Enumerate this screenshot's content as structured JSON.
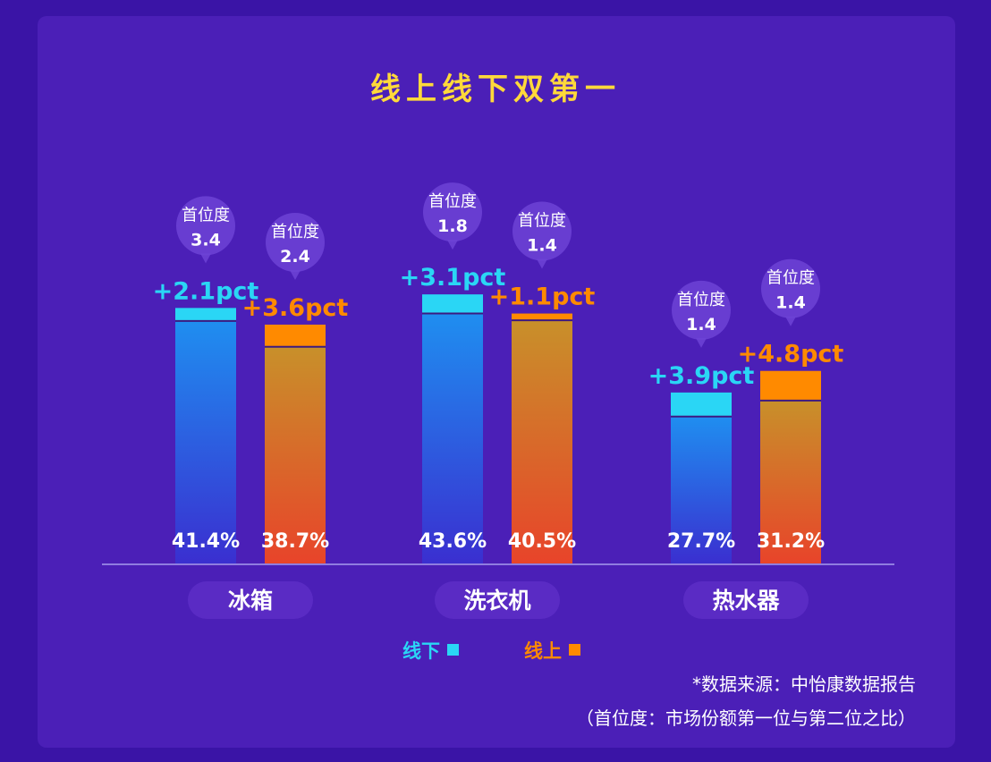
{
  "title": "线上线下双第一",
  "chart_data": {
    "type": "bar",
    "categories": [
      "冰箱",
      "洗衣机",
      "热水器"
    ],
    "series": [
      {
        "name": "线下",
        "values": [
          41.4,
          43.6,
          27.7
        ],
        "labels": [
          "41.4%",
          "43.6%",
          "27.7%"
        ],
        "increase": [
          2.1,
          3.1,
          3.9
        ],
        "increase_labels": [
          "+2.1pct",
          "+3.1pct",
          "+3.9pct"
        ],
        "lead_ratio": [
          "3.4",
          "1.8",
          "1.4"
        ],
        "color": "#2ad6f5"
      },
      {
        "name": "线上",
        "values": [
          38.7,
          40.5,
          31.2
        ],
        "labels": [
          "38.7%",
          "40.5%",
          "31.2%"
        ],
        "increase": [
          3.6,
          1.1,
          4.8
        ],
        "increase_labels": [
          "+3.6pct",
          "+1.1pct",
          "+4.8pct"
        ],
        "lead_ratio": [
          "2.4",
          "1.4",
          "1.4"
        ],
        "color": "#ff8a00"
      }
    ],
    "badge_label": "首位度",
    "ylim": [
      0,
      50
    ]
  },
  "legend": {
    "offline": "线下",
    "online": "线上"
  },
  "colors": {
    "offline": "#2ad6f5",
    "online": "#ff8a00",
    "title": "#ffd93a"
  },
  "notes": {
    "source": "*数据来源：中怡康数据报告",
    "definition": "（首位度：市场份额第一位与第二位之比）"
  }
}
